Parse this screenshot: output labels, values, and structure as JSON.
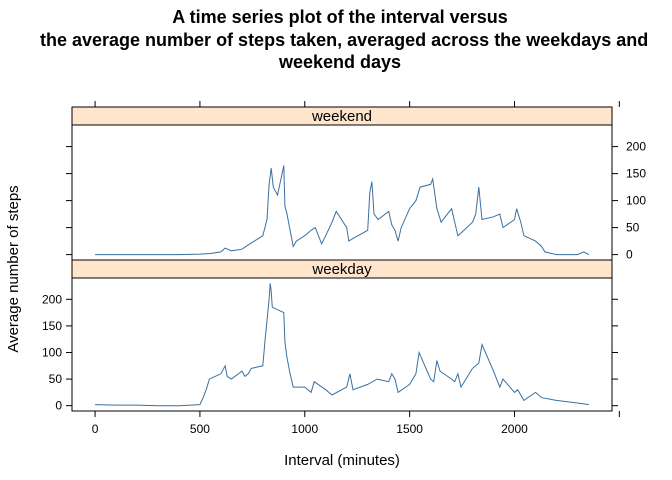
{
  "chart_data": {
    "type": "line",
    "title_lines": [
      "A time series plot of the interval versus",
      "the average number of steps taken, averaged across the weekdays and",
      "weekend days"
    ],
    "xlabel": "Interval (minutes)",
    "ylabel": "Average number of steps",
    "xlim": [
      -110,
      2465
    ],
    "ylim": [
      -10,
      240
    ],
    "x_ticks": [
      0,
      500,
      1000,
      1500,
      2000
    ],
    "y_ticks": [
      0,
      50,
      100,
      150,
      200
    ],
    "line_color": "#3a6f9f",
    "strip_color": "#ffe5cc",
    "grid": false,
    "panels": [
      {
        "name": "weekend",
        "points": [
          [
            0,
            0
          ],
          [
            100,
            0
          ],
          [
            200,
            0
          ],
          [
            300,
            0
          ],
          [
            400,
            0
          ],
          [
            500,
            1
          ],
          [
            550,
            2
          ],
          [
            600,
            5
          ],
          [
            620,
            12
          ],
          [
            650,
            7
          ],
          [
            700,
            10
          ],
          [
            730,
            18
          ],
          [
            760,
            25
          ],
          [
            800,
            35
          ],
          [
            820,
            65
          ],
          [
            830,
            130
          ],
          [
            840,
            160
          ],
          [
            850,
            125
          ],
          [
            870,
            110
          ],
          [
            900,
            165
          ],
          [
            905,
            90
          ],
          [
            915,
            75
          ],
          [
            930,
            45
          ],
          [
            945,
            15
          ],
          [
            960,
            25
          ],
          [
            1000,
            35
          ],
          [
            1030,
            45
          ],
          [
            1050,
            50
          ],
          [
            1080,
            20
          ],
          [
            1100,
            35
          ],
          [
            1130,
            60
          ],
          [
            1150,
            80
          ],
          [
            1200,
            50
          ],
          [
            1210,
            25
          ],
          [
            1230,
            30
          ],
          [
            1300,
            45
          ],
          [
            1310,
            115
          ],
          [
            1320,
            135
          ],
          [
            1330,
            75
          ],
          [
            1350,
            65
          ],
          [
            1400,
            80
          ],
          [
            1415,
            55
          ],
          [
            1430,
            45
          ],
          [
            1445,
            25
          ],
          [
            1460,
            50
          ],
          [
            1500,
            85
          ],
          [
            1530,
            100
          ],
          [
            1550,
            125
          ],
          [
            1600,
            130
          ],
          [
            1610,
            140
          ],
          [
            1630,
            85
          ],
          [
            1650,
            60
          ],
          [
            1700,
            85
          ],
          [
            1715,
            60
          ],
          [
            1730,
            35
          ],
          [
            1745,
            40
          ],
          [
            1800,
            60
          ],
          [
            1815,
            75
          ],
          [
            1830,
            125
          ],
          [
            1845,
            65
          ],
          [
            1900,
            70
          ],
          [
            1930,
            75
          ],
          [
            1945,
            50
          ],
          [
            2000,
            65
          ],
          [
            2010,
            85
          ],
          [
            2030,
            60
          ],
          [
            2045,
            35
          ],
          [
            2100,
            25
          ],
          [
            2130,
            15
          ],
          [
            2145,
            5
          ],
          [
            2200,
            0
          ],
          [
            2300,
            0
          ],
          [
            2330,
            5
          ],
          [
            2355,
            0
          ]
        ]
      },
      {
        "name": "weekday",
        "points": [
          [
            0,
            2
          ],
          [
            100,
            1
          ],
          [
            200,
            1
          ],
          [
            300,
            0
          ],
          [
            400,
            0
          ],
          [
            500,
            2
          ],
          [
            515,
            15
          ],
          [
            530,
            30
          ],
          [
            545,
            50
          ],
          [
            600,
            60
          ],
          [
            620,
            75
          ],
          [
            630,
            55
          ],
          [
            650,
            50
          ],
          [
            700,
            65
          ],
          [
            715,
            55
          ],
          [
            730,
            60
          ],
          [
            745,
            70
          ],
          [
            800,
            75
          ],
          [
            810,
            120
          ],
          [
            820,
            160
          ],
          [
            830,
            200
          ],
          [
            835,
            230
          ],
          [
            840,
            215
          ],
          [
            845,
            185
          ],
          [
            900,
            175
          ],
          [
            905,
            120
          ],
          [
            915,
            90
          ],
          [
            930,
            60
          ],
          [
            945,
            35
          ],
          [
            1000,
            35
          ],
          [
            1030,
            25
          ],
          [
            1045,
            45
          ],
          [
            1100,
            30
          ],
          [
            1130,
            20
          ],
          [
            1200,
            35
          ],
          [
            1215,
            60
          ],
          [
            1230,
            30
          ],
          [
            1300,
            40
          ],
          [
            1345,
            50
          ],
          [
            1400,
            45
          ],
          [
            1415,
            60
          ],
          [
            1430,
            50
          ],
          [
            1445,
            25
          ],
          [
            1500,
            40
          ],
          [
            1530,
            60
          ],
          [
            1545,
            100
          ],
          [
            1600,
            50
          ],
          [
            1615,
            45
          ],
          [
            1630,
            85
          ],
          [
            1645,
            65
          ],
          [
            1700,
            50
          ],
          [
            1715,
            45
          ],
          [
            1730,
            60
          ],
          [
            1745,
            35
          ],
          [
            1800,
            70
          ],
          [
            1815,
            75
          ],
          [
            1830,
            80
          ],
          [
            1845,
            115
          ],
          [
            1900,
            65
          ],
          [
            1930,
            35
          ],
          [
            1945,
            50
          ],
          [
            2000,
            25
          ],
          [
            2015,
            30
          ],
          [
            2030,
            20
          ],
          [
            2045,
            10
          ],
          [
            2100,
            25
          ],
          [
            2130,
            15
          ],
          [
            2200,
            10
          ],
          [
            2300,
            5
          ],
          [
            2355,
            2
          ]
        ]
      }
    ]
  }
}
